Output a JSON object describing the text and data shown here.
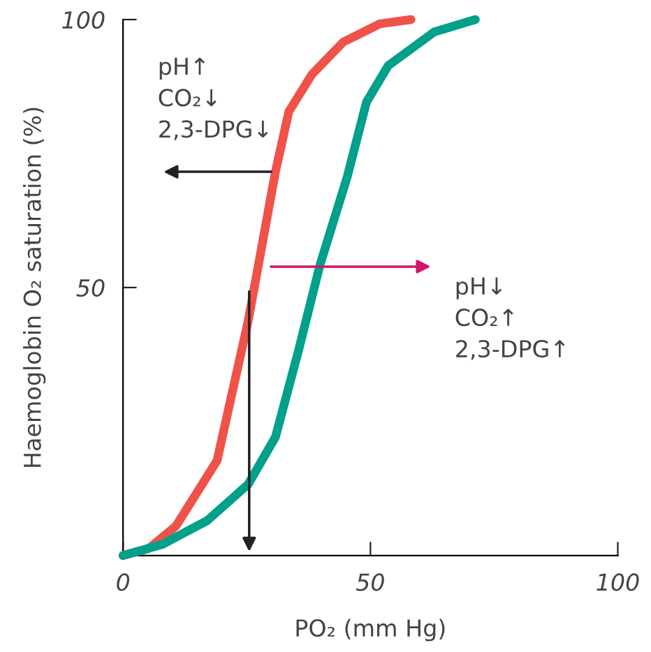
{
  "chart_data": {
    "type": "line",
    "xlabel": "PO₂ (mm Hg)",
    "ylabel": "Haemoglobin O₂ saturation (%)",
    "series": [
      {
        "color": "#ef5249",
        "x": [
          0,
          5.2,
          10.7,
          19.0,
          25.3,
          27.2,
          30.8,
          33.5,
          38.2,
          44.5,
          51.9,
          58.2
        ],
        "values": [
          0,
          1.3,
          5.5,
          17.7,
          43.8,
          53.4,
          71.6,
          82.8,
          89.8,
          95.8,
          99.2,
          100
        ]
      },
      {
        "color": "#00a08a",
        "x": [
          0,
          8.0,
          17.0,
          25.3,
          30.8,
          35.4,
          39.8,
          45.3,
          49.2,
          53.6,
          62.9,
          71.2
        ],
        "values": [
          0,
          2.1,
          6.5,
          13.3,
          22.1,
          38,
          54.2,
          70.6,
          84.6,
          91.4,
          97.7,
          100
        ]
      }
    ],
    "annotations": [
      "pH↑\nCO₂↓\n2,3-DPG↓",
      "pH↓\nCO₂↑\n2,3-DPG↑"
    ],
    "xlim": [
      0,
      100
    ],
    "ylim": [
      0,
      100
    ],
    "xticks": [
      0,
      50,
      100
    ],
    "yticks": [
      50,
      100
    ],
    "grid": false,
    "legend": false,
    "marker": "none",
    "line_style": "solid"
  }
}
